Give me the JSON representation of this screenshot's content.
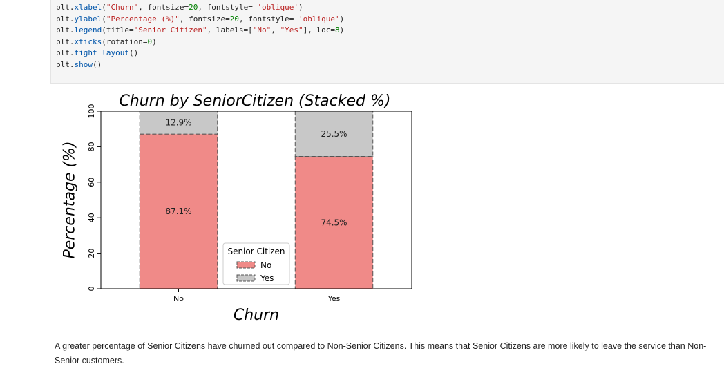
{
  "code_cell": {
    "lines": [
      [
        {
          "t": "plt.",
          "c": ""
        },
        {
          "t": "xlabel",
          "c": "fn"
        },
        {
          "t": "(",
          "c": ""
        },
        {
          "t": "\"Churn\"",
          "c": "str"
        },
        {
          "t": ", fontsize=",
          "c": ""
        },
        {
          "t": "20",
          "c": "num"
        },
        {
          "t": ", fontstyle= ",
          "c": ""
        },
        {
          "t": "'oblique'",
          "c": "str"
        },
        {
          "t": ")",
          "c": ""
        }
      ],
      [
        {
          "t": "plt.",
          "c": ""
        },
        {
          "t": "ylabel",
          "c": "fn"
        },
        {
          "t": "(",
          "c": ""
        },
        {
          "t": "\"Percentage (%)\"",
          "c": "str"
        },
        {
          "t": ", fontsize=",
          "c": ""
        },
        {
          "t": "20",
          "c": "num"
        },
        {
          "t": ", fontstyle= ",
          "c": ""
        },
        {
          "t": "'oblique'",
          "c": "str"
        },
        {
          "t": ")",
          "c": ""
        }
      ],
      [
        {
          "t": "plt.",
          "c": ""
        },
        {
          "t": "legend",
          "c": "fn"
        },
        {
          "t": "(title=",
          "c": ""
        },
        {
          "t": "\"Senior Citizen\"",
          "c": "str"
        },
        {
          "t": ", labels=[",
          "c": ""
        },
        {
          "t": "\"No\"",
          "c": "str"
        },
        {
          "t": ", ",
          "c": ""
        },
        {
          "t": "\"Yes\"",
          "c": "str"
        },
        {
          "t": "], loc=",
          "c": ""
        },
        {
          "t": "8",
          "c": "num"
        },
        {
          "t": ")",
          "c": ""
        }
      ],
      [
        {
          "t": "plt.",
          "c": ""
        },
        {
          "t": "xticks",
          "c": "fn"
        },
        {
          "t": "(rotation=",
          "c": ""
        },
        {
          "t": "0",
          "c": "num"
        },
        {
          "t": ")",
          "c": ""
        }
      ],
      [
        {
          "t": "plt.",
          "c": ""
        },
        {
          "t": "tight_layout",
          "c": "fn"
        },
        {
          "t": "()",
          "c": ""
        }
      ],
      [
        {
          "t": "plt.",
          "c": ""
        },
        {
          "t": "show",
          "c": "fn"
        },
        {
          "t": "()",
          "c": ""
        }
      ]
    ]
  },
  "chart_data": {
    "type": "bar",
    "stacked": true,
    "title": "Churn by SeniorCitizen (Stacked %)",
    "xlabel": "Churn",
    "ylabel": "Percentage (%)",
    "categories": [
      "No",
      "Yes"
    ],
    "ylim": [
      0,
      100
    ],
    "yticks": [
      0,
      20,
      40,
      60,
      80,
      100
    ],
    "series": [
      {
        "name": "No",
        "values": [
          87.1,
          74.5
        ],
        "labels": [
          "87.1%",
          "74.5%"
        ],
        "color": "#f08a88"
      },
      {
        "name": "Yes",
        "values": [
          12.9,
          25.5
        ],
        "labels": [
          "12.9%",
          "25.5%"
        ],
        "color": "#c8c8c8"
      }
    ],
    "legend": {
      "title": "Senior Citizen",
      "placement": "lower-center"
    },
    "grid": false
  },
  "markdown": {
    "text": "A greater percentage of Senior Citizens have churned out compared to Non-Senior Citizens. This means that Senior Citizens are more likely to leave the service than Non-Senior customers."
  }
}
